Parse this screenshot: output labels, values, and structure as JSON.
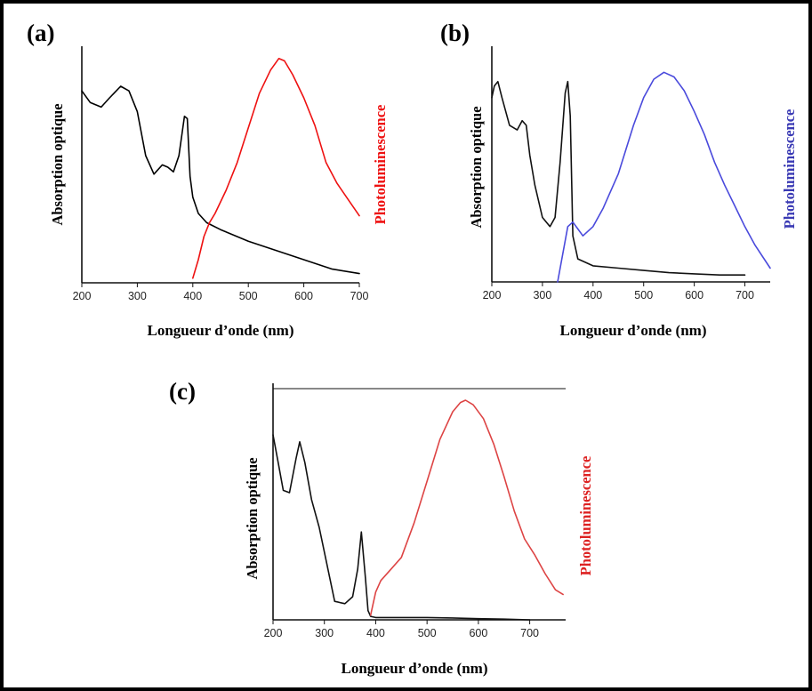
{
  "chart_data": [
    {
      "type": "line",
      "panel": "(a)",
      "xlabel": "Longueur d’onde (nm)",
      "ylabel_left": "Absorption optique",
      "ylabel_right": "Photoluminescence",
      "xlim": [
        200,
        700
      ],
      "xticks": [
        200,
        300,
        400,
        500,
        600,
        700
      ],
      "series": [
        {
          "role": "absorption",
          "color": "#000000",
          "x": [
            200,
            215,
            235,
            250,
            270,
            285,
            300,
            315,
            330,
            345,
            355,
            365,
            375,
            385,
            390,
            395,
            400,
            410,
            425,
            450,
            500,
            550,
            600,
            650,
            700
          ],
          "y": [
            0.83,
            0.78,
            0.76,
            0.8,
            0.85,
            0.83,
            0.74,
            0.55,
            0.47,
            0.51,
            0.5,
            0.48,
            0.55,
            0.72,
            0.71,
            0.46,
            0.37,
            0.3,
            0.26,
            0.23,
            0.18,
            0.14,
            0.1,
            0.06,
            0.04
          ]
        },
        {
          "role": "photoluminescence",
          "color": "#ee1111",
          "x": [
            400,
            410,
            420,
            430,
            440,
            460,
            480,
            500,
            520,
            540,
            555,
            565,
            580,
            600,
            620,
            640,
            660,
            680,
            700
          ],
          "y": [
            0.02,
            0.1,
            0.2,
            0.26,
            0.3,
            0.4,
            0.52,
            0.67,
            0.82,
            0.92,
            0.97,
            0.96,
            0.9,
            0.8,
            0.68,
            0.52,
            0.43,
            0.36,
            0.29
          ]
        }
      ]
    },
    {
      "type": "line",
      "panel": "(b)",
      "xlabel": "Longueur d’onde (nm)",
      "ylabel_left": "Absorption optique",
      "ylabel_right": "Photoluminescence",
      "xlim": [
        200,
        750
      ],
      "xticks": [
        200,
        300,
        400,
        500,
        600,
        700
      ],
      "series": [
        {
          "role": "absorption",
          "color": "#111111",
          "x": [
            200,
            205,
            212,
            220,
            235,
            250,
            260,
            268,
            275,
            285,
            300,
            315,
            325,
            335,
            345,
            350,
            355,
            360,
            370,
            400,
            450,
            500,
            550,
            600,
            650,
            700
          ],
          "y": [
            0.8,
            0.85,
            0.87,
            0.8,
            0.68,
            0.66,
            0.7,
            0.68,
            0.55,
            0.42,
            0.28,
            0.24,
            0.28,
            0.52,
            0.82,
            0.87,
            0.72,
            0.2,
            0.1,
            0.07,
            0.06,
            0.05,
            0.04,
            0.035,
            0.03,
            0.03
          ]
        },
        {
          "role": "photoluminescence",
          "color": "#4a4adc",
          "x": [
            330,
            340,
            350,
            360,
            370,
            380,
            400,
            420,
            450,
            480,
            500,
            520,
            540,
            560,
            580,
            600,
            620,
            640,
            660,
            680,
            700,
            720,
            750
          ],
          "y": [
            0.0,
            0.12,
            0.24,
            0.26,
            0.23,
            0.2,
            0.24,
            0.32,
            0.47,
            0.68,
            0.8,
            0.88,
            0.91,
            0.89,
            0.83,
            0.74,
            0.64,
            0.52,
            0.42,
            0.33,
            0.24,
            0.16,
            0.06
          ]
        }
      ]
    },
    {
      "type": "line",
      "panel": "(c)",
      "xlabel": "Longueur d’onde (nm)",
      "ylabel_left": "Absorption optique",
      "ylabel_right": "Photoluminescence",
      "xlim": [
        200,
        770
      ],
      "xticks": [
        200,
        300,
        400,
        500,
        600,
        700
      ],
      "series": [
        {
          "role": "absorption",
          "color": "#111111",
          "x": [
            200,
            210,
            220,
            232,
            245,
            252,
            262,
            275,
            290,
            305,
            320,
            340,
            355,
            365,
            372,
            380,
            385,
            390,
            400,
            450,
            500,
            550,
            600,
            650,
            700
          ],
          "y": [
            0.8,
            0.68,
            0.56,
            0.55,
            0.7,
            0.77,
            0.68,
            0.52,
            0.4,
            0.24,
            0.08,
            0.07,
            0.1,
            0.22,
            0.38,
            0.18,
            0.04,
            0.015,
            0.01,
            0.01,
            0.01,
            0.008,
            0.005,
            0.003,
            0.0
          ]
        },
        {
          "role": "photoluminescence",
          "color": "#dd4444",
          "x": [
            390,
            400,
            410,
            430,
            450,
            475,
            500,
            525,
            550,
            565,
            575,
            590,
            610,
            630,
            650,
            670,
            690,
            710,
            730,
            750,
            765
          ],
          "y": [
            0.02,
            0.12,
            0.17,
            0.22,
            0.27,
            0.42,
            0.6,
            0.78,
            0.9,
            0.94,
            0.95,
            0.93,
            0.87,
            0.76,
            0.62,
            0.47,
            0.35,
            0.28,
            0.2,
            0.13,
            0.11
          ]
        }
      ]
    }
  ]
}
